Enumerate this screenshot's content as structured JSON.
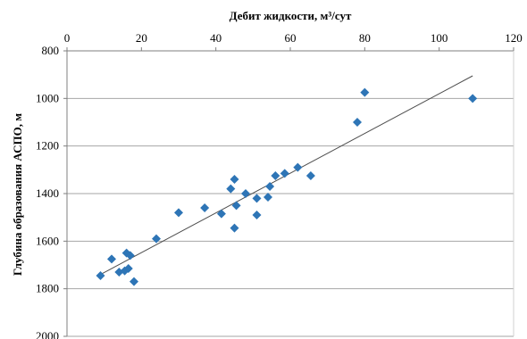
{
  "chart_data": {
    "type": "scatter",
    "xlabel": "Дебит жидкости, м³/сут",
    "ylabel": "Глубина образования АСПО, м",
    "xlim": [
      0,
      120
    ],
    "ylim": [
      800,
      2000
    ],
    "y_inverted": true,
    "x_axis_position": "top",
    "xticks": [
      "0",
      "20",
      "40",
      "60",
      "80",
      "100",
      "120"
    ],
    "yticks": [
      "800",
      "1000",
      "1200",
      "1400",
      "1600",
      "1800",
      "2000"
    ],
    "grid": "horizontal",
    "legend": "none",
    "marker": "diamond",
    "marker_color": "#2E75B6",
    "trendline": {
      "type": "linear",
      "color": "#4d4d4d",
      "x": [
        9,
        109
      ],
      "y": [
        1740,
        905
      ]
    },
    "points": [
      {
        "x": 9,
        "y": 1745
      },
      {
        "x": 12,
        "y": 1675
      },
      {
        "x": 14,
        "y": 1730
      },
      {
        "x": 15.5,
        "y": 1725
      },
      {
        "x": 16,
        "y": 1650
      },
      {
        "x": 16.5,
        "y": 1715
      },
      {
        "x": 17,
        "y": 1660
      },
      {
        "x": 18,
        "y": 1770
      },
      {
        "x": 24,
        "y": 1590
      },
      {
        "x": 30,
        "y": 1480
      },
      {
        "x": 37,
        "y": 1460
      },
      {
        "x": 41.5,
        "y": 1485
      },
      {
        "x": 44,
        "y": 1380
      },
      {
        "x": 45,
        "y": 1340
      },
      {
        "x": 45,
        "y": 1545
      },
      {
        "x": 45.5,
        "y": 1450
      },
      {
        "x": 48,
        "y": 1400
      },
      {
        "x": 51,
        "y": 1420
      },
      {
        "x": 51,
        "y": 1490
      },
      {
        "x": 54,
        "y": 1415
      },
      {
        "x": 54.5,
        "y": 1370
      },
      {
        "x": 56,
        "y": 1325
      },
      {
        "x": 58.5,
        "y": 1315
      },
      {
        "x": 62,
        "y": 1290
      },
      {
        "x": 65.5,
        "y": 1325
      },
      {
        "x": 78,
        "y": 1100
      },
      {
        "x": 80,
        "y": 975
      },
      {
        "x": 109,
        "y": 1000
      }
    ]
  }
}
